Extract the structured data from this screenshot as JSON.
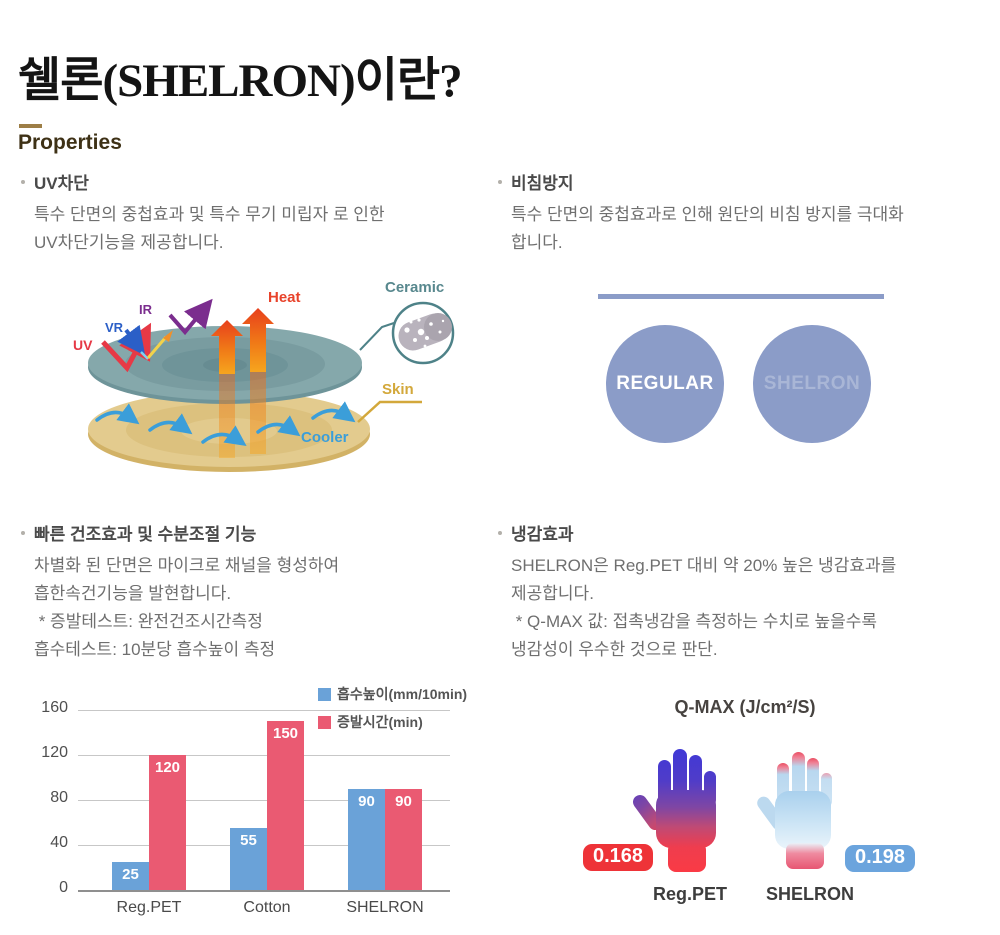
{
  "title": "쉘론(SHELRON)이란?",
  "properties_heading": "Properties",
  "sections": {
    "uv_block": {
      "title": "UV차단",
      "body": "특수 단면의 중첩효과 및 특수 무기 미립자 로 인한\nUV차단기능을 제공합니다."
    },
    "sheer": {
      "title": "비침방지",
      "body": "특수 단면의 중첩효과로 인해 원단의 비침 방지를 극대화\n합니다.",
      "circles": [
        {
          "label": "REGULAR"
        },
        {
          "label": "SHELRON"
        }
      ]
    },
    "drying": {
      "title": "빠른 건조효과 및 수분조절 기능",
      "body": "차별화 된 단면은 마이크로 채널을 형성하여\n흡한속건기능을 발현합니다.\n * 증발테스트: 완전건조시간측정\n흡수테스트: 10분당 흡수높이 측정"
    },
    "cooling": {
      "title": "냉감효과",
      "body": "SHELRON은 Reg.PET 대비 약 20% 높은 냉감효과를\n제공합니다.\n * Q-MAX 값: 접촉냉감을 측정하는 수치로 높을수록\n냉감성이 우수한 것으로 판단."
    }
  },
  "diagram": {
    "labels": {
      "heat": "Heat",
      "uv": "UV",
      "vr": "VR",
      "ir": "IR",
      "ceramic": "Ceramic",
      "skin": "Skin",
      "cooler": "Cooler"
    }
  },
  "chart_data": {
    "type": "bar",
    "categories": [
      "Reg.PET",
      "Cotton",
      "SHELRON"
    ],
    "series": [
      {
        "name": "흡수높이(mm/10min)",
        "color": "#6aa2d8",
        "values": [
          25,
          55,
          90
        ]
      },
      {
        "name": "증발시간(min)",
        "color": "#ea5a72",
        "values": [
          120,
          150,
          90
        ]
      }
    ],
    "ylim": [
      0,
      160
    ],
    "yticks": [
      0,
      40,
      80,
      120,
      160
    ],
    "grid": true,
    "legend_position": "top-right"
  },
  "qmax": {
    "title": "Q-MAX (J/cm²/S)",
    "items": [
      {
        "label": "Reg.PET",
        "value": "0.168",
        "badge_color": "#ee3338"
      },
      {
        "label": "SHELRON",
        "value": "0.198",
        "badge_color": "#6ba4dd"
      }
    ]
  },
  "colors": {
    "properties_accent": "#9d7e46",
    "sheer_circle_blue": "#8b9cc8",
    "bar_blue": "#6aa2d8",
    "bar_red": "#ea5a72"
  }
}
